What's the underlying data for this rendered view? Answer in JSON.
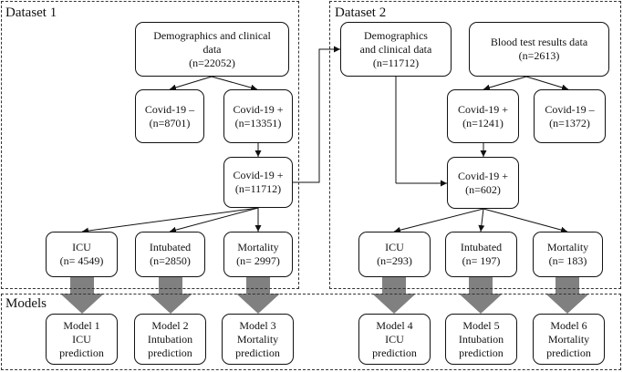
{
  "regions": {
    "dataset1": "Dataset 1",
    "dataset2": "Dataset 2",
    "models": "Models"
  },
  "nodes": {
    "d1_demographics": "Demographics and clinical\ndata\n(n=22052)",
    "d1_covid_neg": "Covid-19 –\n(n=8701)",
    "d1_covid_pos": "Covid-19 +\n(n=13351)",
    "d1_covid_pos_final": "Covid-19 +\n(n=11712)",
    "d1_icu": "ICU\n(n= 4549)",
    "d1_intubated": "Intubated\n(n=2850)",
    "d1_mortality": "Mortality\n(n= 2997)",
    "d2_demographics": "Demographics\nand clinical data\n(n=11712)",
    "d2_blood": "Blood test results data\n(n=2613)",
    "d2_covid_pos": "Covid-19 +\n(n=1241)",
    "d2_covid_neg": "Covid-19 –\n(n=1372)",
    "d2_covid_pos_final": "Covid-19 +\n(n=602)",
    "d2_icu": "ICU\n(n=293)",
    "d2_intubated": "Intubated\n(n= 197)",
    "d2_mortality": "Mortality\n(n= 183)",
    "model1": "Model 1\nICU\nprediction",
    "model2": "Model 2\nIntubation\nprediction",
    "model3": "Model 3\nMortality\nprediction",
    "model4": "Model 4\nICU\nprediction",
    "model5": "Model 5\nIntubation\nprediction",
    "model6": "Model 6\nMortality\nprediction"
  },
  "colors": {
    "border": "#111111",
    "dashed": "#333333",
    "big_arrow": "#808080",
    "background": "#ffffff"
  }
}
